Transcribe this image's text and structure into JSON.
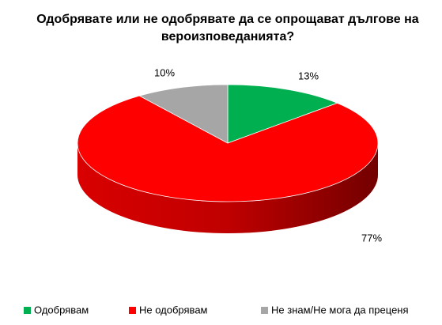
{
  "chart_data": {
    "type": "pie",
    "title": "Одобрявате или не одобрявате да се опрощават дългове на вероизповеданията?",
    "categories": [
      "Одобрявам",
      "Не одобрявам",
      "Не знам/Не мога да преценя"
    ],
    "values": [
      13,
      77,
      10
    ],
    "value_labels": [
      "13%",
      "77%",
      "10%"
    ],
    "colors": [
      "#00b050",
      "#ff0000",
      "#a6a6a6"
    ],
    "legend": "bottom"
  }
}
